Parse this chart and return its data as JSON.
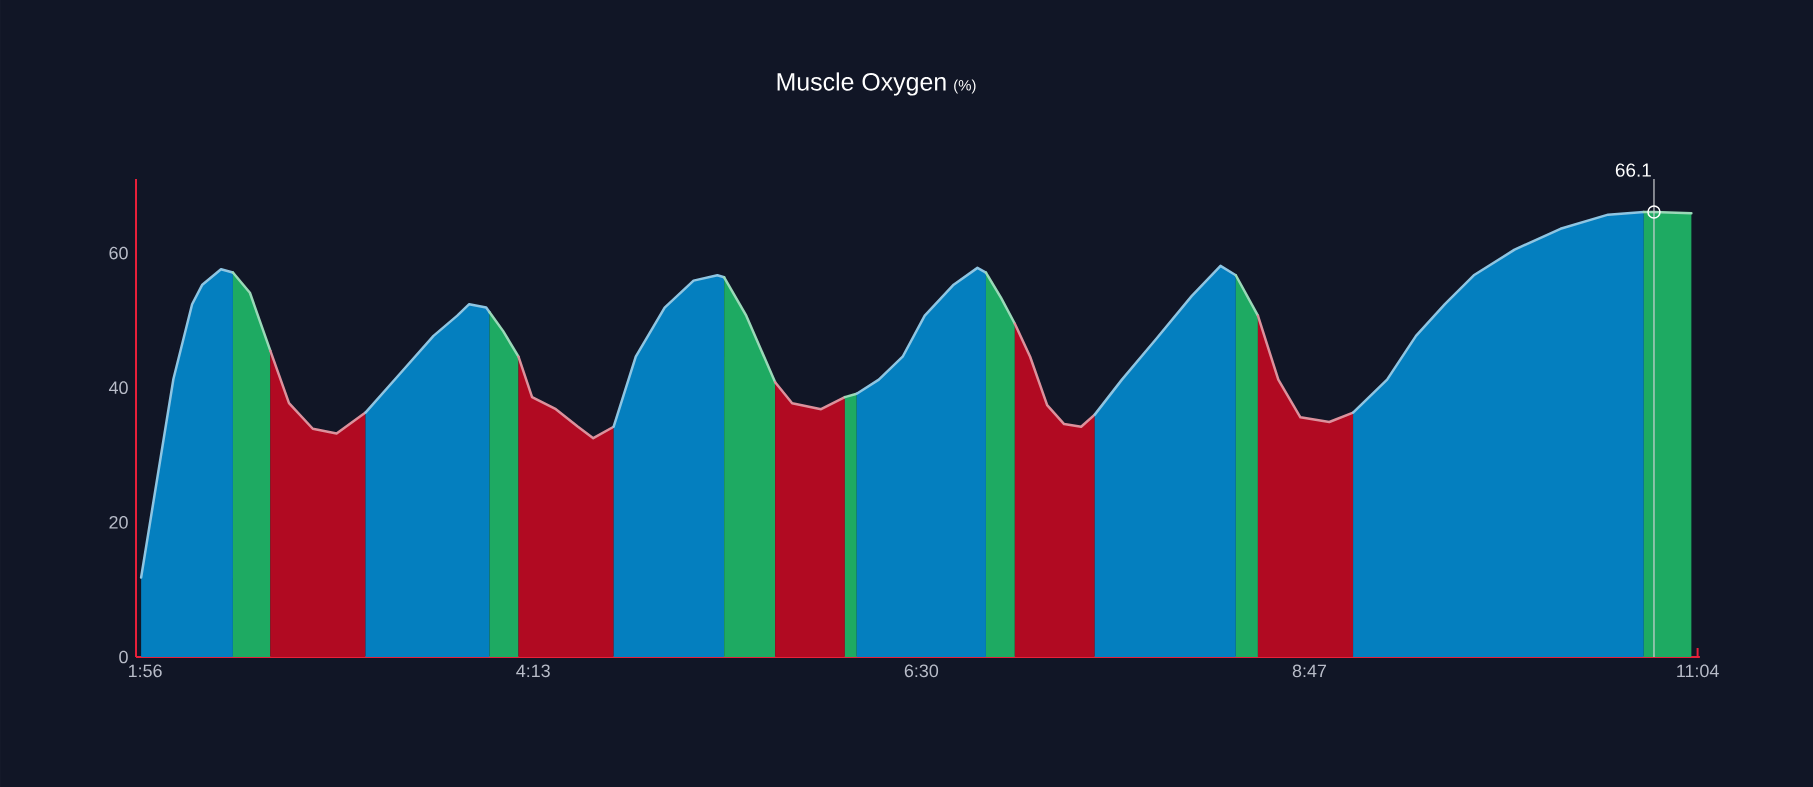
{
  "chart_data": {
    "type": "area",
    "title": "Muscle Oxygen",
    "subtitle": "(%)",
    "xlim": [
      1.88,
      11.08
    ],
    "ylim": [
      0,
      71
    ],
    "xticks": [
      {
        "value": 1.9333,
        "label": "1:56"
      },
      {
        "value": 4.2167,
        "label": "4:13"
      },
      {
        "value": 6.5,
        "label": "6:30"
      },
      {
        "value": 8.7833,
        "label": "8:47"
      },
      {
        "value": 11.0667,
        "label": "11:04"
      }
    ],
    "yticks": [
      0,
      20,
      40,
      60
    ],
    "series": [
      {
        "color": "#047fbf",
        "x": [
          1.91,
          2.1,
          2.21,
          2.27,
          2.38,
          2.45
        ],
        "values": [
          11.8,
          41.3,
          52.4,
          55.3,
          57.6,
          57.1
        ]
      },
      {
        "color": "#1eaa62",
        "x": [
          2.45,
          2.55,
          2.67
        ],
        "values": [
          57.1,
          54.1,
          45.5
        ]
      },
      {
        "color": "#b10a22",
        "x": [
          2.67,
          2.78,
          2.92,
          3.06,
          3.23
        ],
        "values": [
          45.5,
          37.7,
          33.9,
          33.2,
          36.3
        ]
      },
      {
        "color": "#047fbf",
        "x": [
          3.23,
          3.43,
          3.63,
          3.77,
          3.84,
          3.94,
          3.96
        ],
        "values": [
          36.3,
          42.0,
          47.7,
          50.7,
          52.4,
          51.9,
          51.2
        ]
      },
      {
        "color": "#1eaa62",
        "x": [
          3.96,
          4.04,
          4.13
        ],
        "values": [
          51.2,
          48.4,
          44.6
        ]
      },
      {
        "color": "#b10a22",
        "x": [
          4.13,
          4.21,
          4.35,
          4.48,
          4.57,
          4.69
        ],
        "values": [
          44.6,
          38.6,
          36.8,
          34.2,
          32.5,
          34.2
        ]
      },
      {
        "color": "#047fbf",
        "x": [
          4.69,
          4.82,
          4.99,
          5.16,
          5.3,
          5.34
        ],
        "values": [
          34.2,
          44.6,
          51.9,
          55.9,
          56.7,
          56.4
        ]
      },
      {
        "color": "#1eaa62",
        "x": [
          5.34,
          5.47,
          5.64
        ],
        "values": [
          56.4,
          50.7,
          40.8
        ]
      },
      {
        "color": "#b10a22",
        "x": [
          5.64,
          5.74,
          5.91,
          6.05
        ],
        "values": [
          40.8,
          37.7,
          36.8,
          38.6
        ]
      },
      {
        "color": "#1eaa62",
        "x": [
          6.05,
          6.12
        ],
        "values": [
          38.6,
          39.1
        ]
      },
      {
        "color": "#047fbf",
        "x": [
          6.12,
          6.25,
          6.39,
          6.52,
          6.69,
          6.83,
          6.88
        ],
        "values": [
          39.1,
          41.2,
          44.6,
          50.7,
          55.3,
          57.8,
          57.1
        ]
      },
      {
        "color": "#1eaa62",
        "x": [
          6.88,
          6.97,
          7.05
        ],
        "values": [
          57.1,
          53.3,
          49.5
        ]
      },
      {
        "color": "#b10a22",
        "x": [
          7.05,
          7.14,
          7.24,
          7.34,
          7.44,
          7.52
        ],
        "values": [
          49.5,
          44.6,
          37.4,
          34.6,
          34.2,
          36.0
        ]
      },
      {
        "color": "#047fbf",
        "x": [
          7.52,
          7.68,
          7.88,
          8.09,
          8.26,
          8.35
        ],
        "values": [
          36.0,
          41.2,
          47.2,
          53.6,
          58.1,
          56.7
        ]
      },
      {
        "color": "#1eaa62",
        "x": [
          8.35,
          8.48
        ],
        "values": [
          56.7,
          50.7
        ]
      },
      {
        "color": "#b10a22",
        "x": [
          8.48,
          8.6,
          8.73,
          8.9,
          9.04
        ],
        "values": [
          50.7,
          41.2,
          35.6,
          34.9,
          36.3
        ]
      },
      {
        "color": "#047fbf",
        "x": [
          9.04,
          9.24,
          9.41,
          9.58,
          9.75,
          9.99,
          10.26,
          10.54,
          10.75
        ],
        "values": [
          36.3,
          41.2,
          47.7,
          52.4,
          56.7,
          60.5,
          63.6,
          65.7,
          66.1
        ]
      },
      {
        "color": "#1eaa62",
        "x": [
          10.75,
          10.81,
          11.03
        ],
        "values": [
          66.1,
          66.1,
          65.9
        ]
      }
    ],
    "ref_lines": [
      {
        "axis": "x",
        "value": 10.81,
        "color": "#cfd0d4"
      }
    ],
    "annotations": [
      {
        "text": "66.1",
        "x": 10.81,
        "y": 66.1
      }
    ]
  }
}
